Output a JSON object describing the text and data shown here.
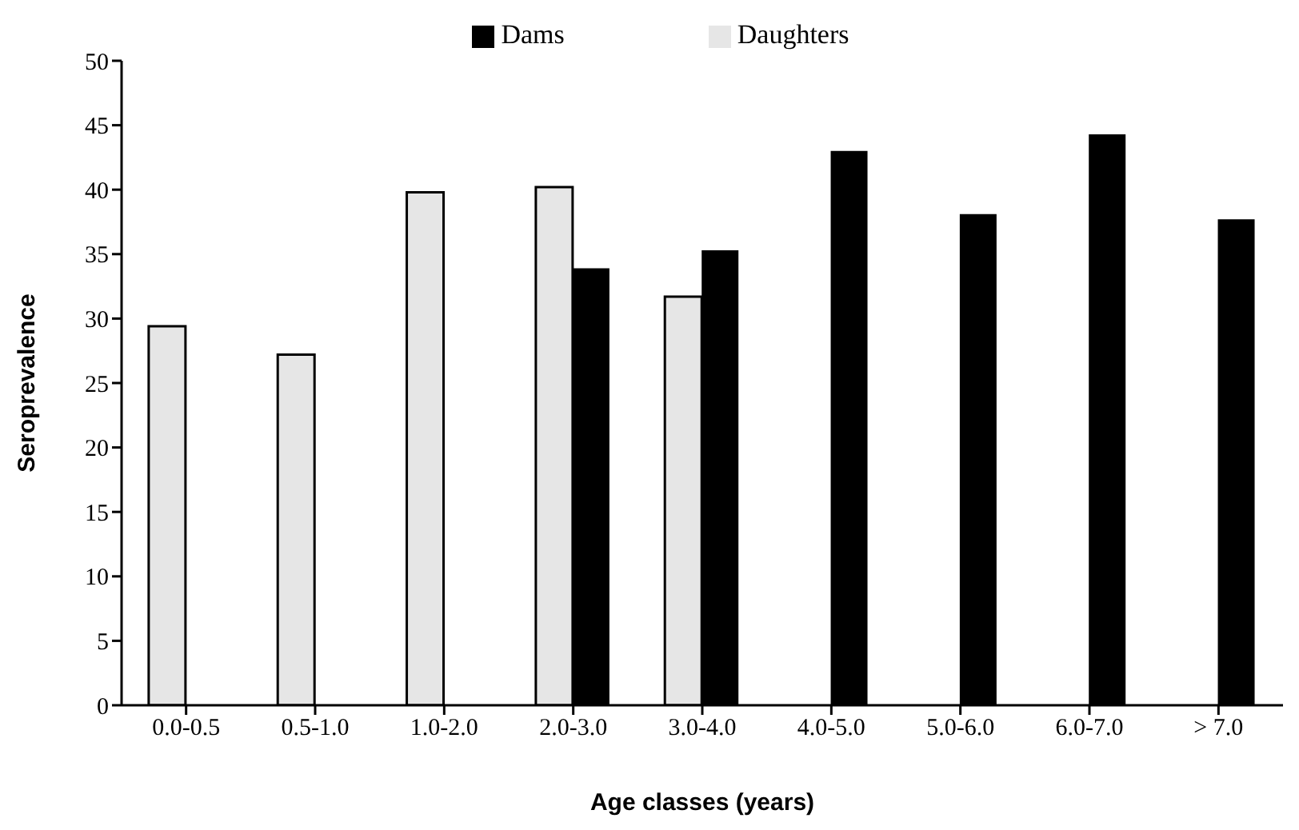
{
  "chart_data": {
    "type": "bar",
    "xlabel": "Age classes (years)",
    "ylabel": "Seroprevalence",
    "categories": [
      "0.0-0.5",
      "0.5-1.0",
      "1.0-2.0",
      "2.0-3.0",
      "3.0-4.0",
      "4.0-5.0",
      "5.0-6.0",
      "6.0-7.0",
      "> 7.0"
    ],
    "series": [
      {
        "name": "Daughters",
        "color": "#e6e6e6",
        "values": [
          29.4,
          27.2,
          39.8,
          40.2,
          31.7,
          null,
          null,
          null,
          null
        ]
      },
      {
        "name": "Dams",
        "color": "#000000",
        "values": [
          null,
          null,
          null,
          33.9,
          35.3,
          43.0,
          38.1,
          44.3,
          37.7
        ]
      }
    ],
    "ylim": [
      0,
      50
    ],
    "yticks": [
      0,
      5,
      10,
      15,
      20,
      25,
      30,
      35,
      40,
      45,
      50
    ],
    "legend": "top",
    "grid": false
  }
}
